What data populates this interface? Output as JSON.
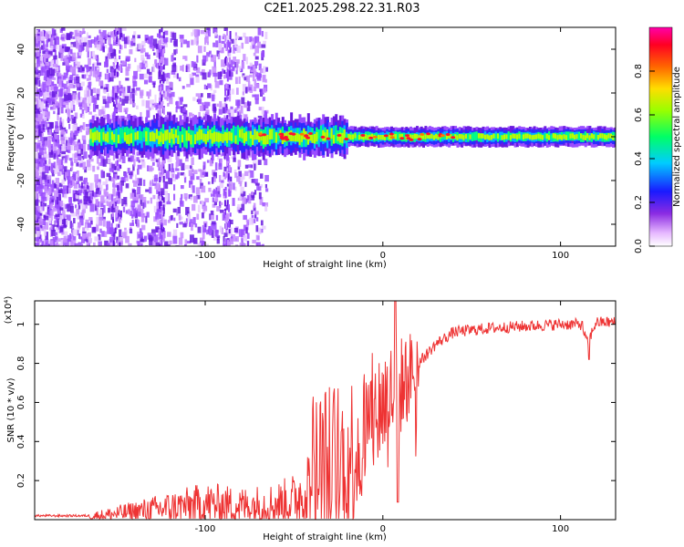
{
  "title": "C2E1.2025.298.22.31.R03",
  "chart_data": [
    {
      "type": "heatmap",
      "xlabel": "Height of straight line (km)",
      "ylabel": "Frequency (Hz)",
      "xlim": [
        -196,
        131
      ],
      "ylim": [
        -50,
        50
      ],
      "xticks": [
        -100,
        0,
        100
      ],
      "yticks": [
        -40,
        -20,
        0,
        20,
        40
      ],
      "colorbar": {
        "label": "Normalized spectral amplitude",
        "range": [
          0,
          1
        ],
        "ticks": [
          0.0,
          0.2,
          0.4,
          0.6,
          0.8
        ]
      }
    },
    {
      "type": "line",
      "xlabel": "Height of straight line (km)",
      "ylabel": "SNR (10 * v/v)",
      "scale_note": "(x10⁴)",
      "xlim": [
        -196,
        131
      ],
      "ylim": [
        0,
        1.12
      ],
      "xticks": [
        -100,
        0,
        100
      ],
      "yticks": [
        0.2,
        0.4,
        0.6,
        0.8,
        1.0
      ],
      "color": "#ee3333",
      "series_envelope": {
        "x": [
          -196,
          -160,
          -140,
          -120,
          -100,
          -80,
          -60,
          -50,
          -40,
          -30,
          -20,
          -10,
          0,
          10,
          20,
          30,
          40,
          60,
          80,
          100,
          112,
          115,
          120,
          131
        ],
        "y": [
          0.02,
          0.02,
          0.04,
          0.06,
          0.08,
          0.07,
          0.08,
          0.1,
          0.18,
          0.24,
          0.3,
          0.45,
          0.6,
          0.68,
          0.8,
          0.9,
          0.96,
          0.98,
          0.99,
          1.0,
          1.0,
          0.9,
          1.01,
          1.01
        ]
      }
    }
  ]
}
